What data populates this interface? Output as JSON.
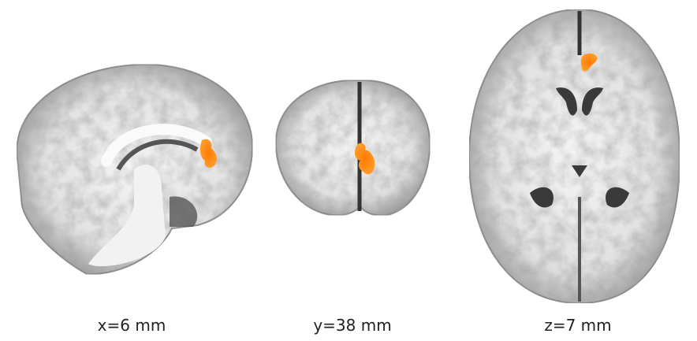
{
  "panels": [
    {
      "label": "x=6 mm"
    },
    {
      "label": "y=38 mm"
    },
    {
      "label": "z=7 mm"
    }
  ]
}
